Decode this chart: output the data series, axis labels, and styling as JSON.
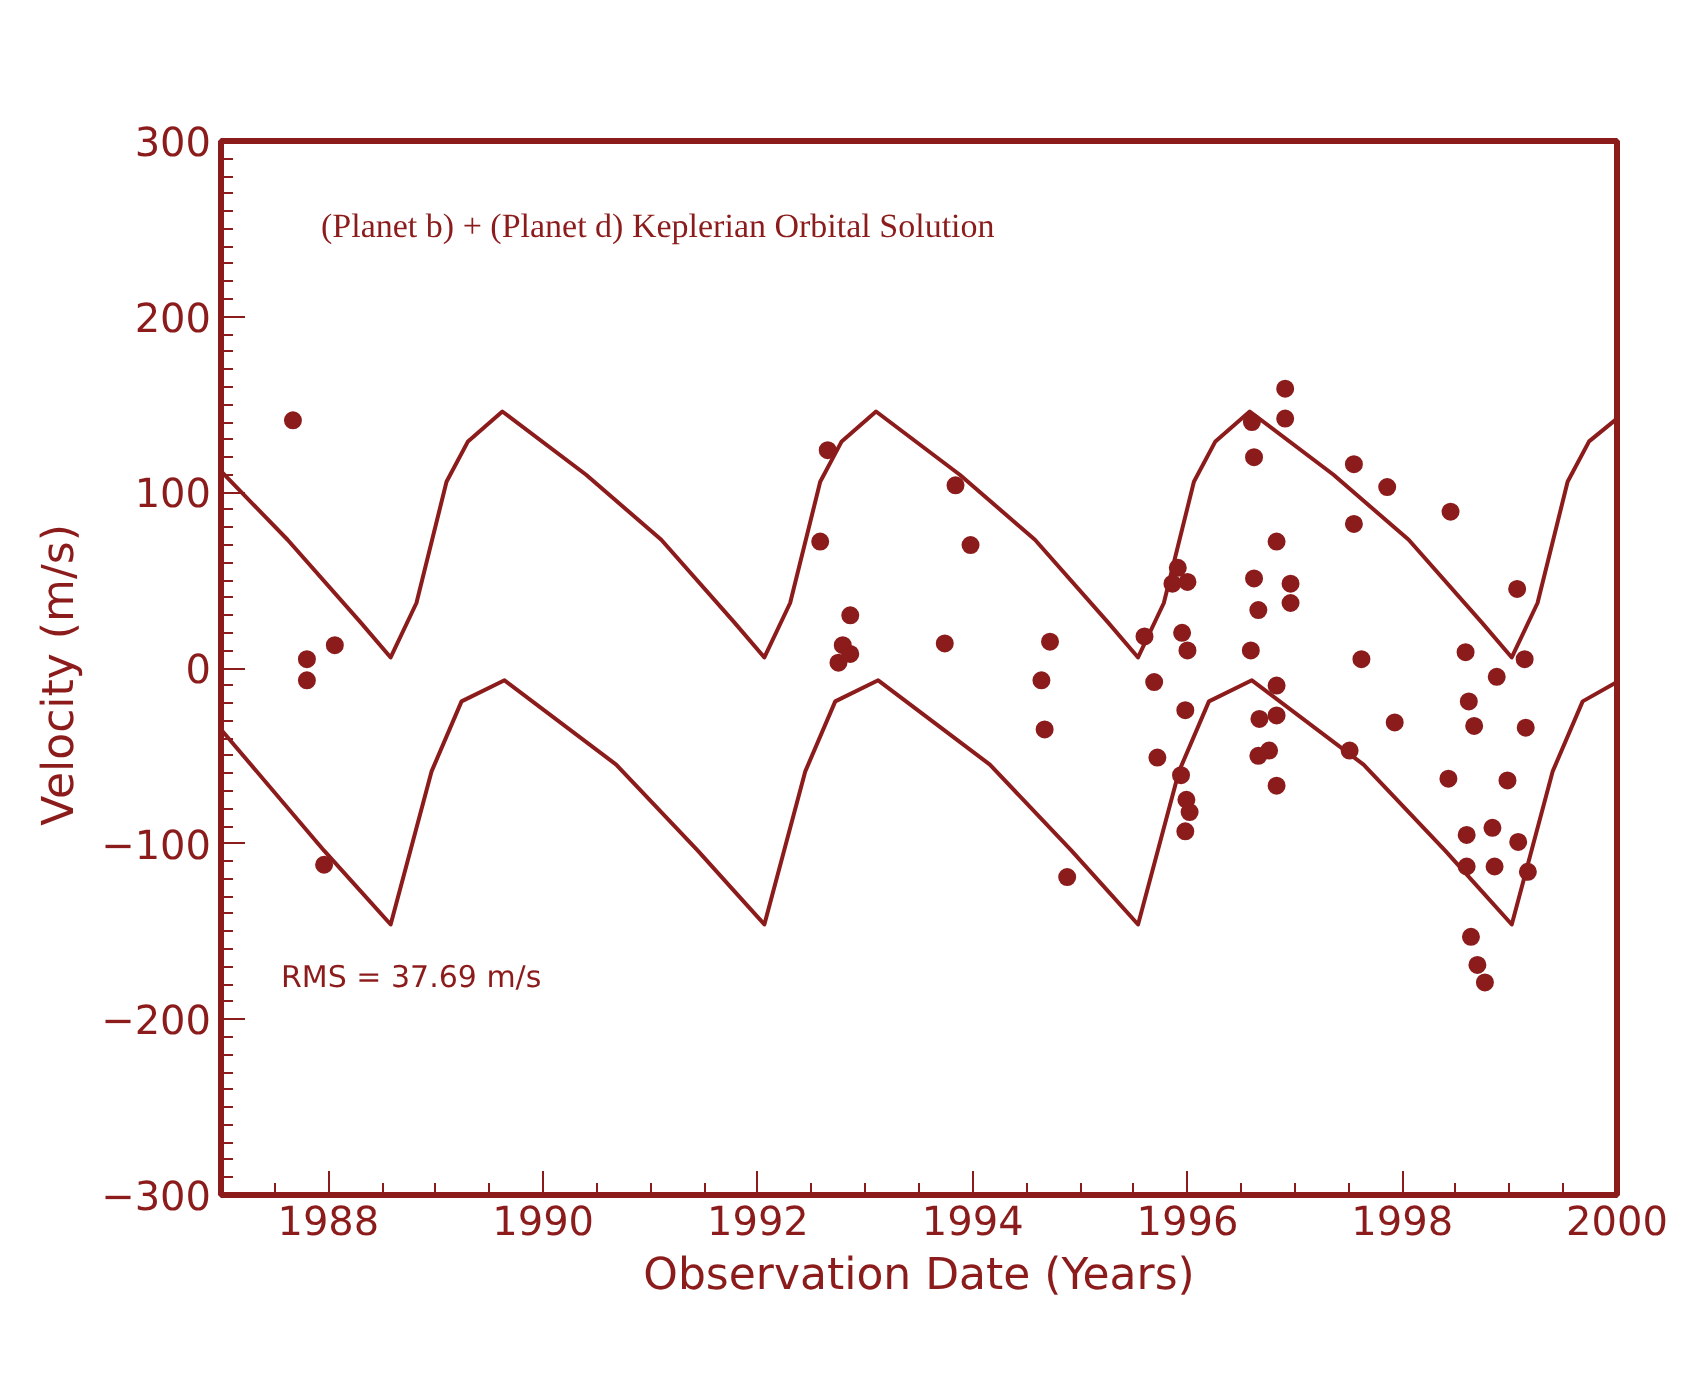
{
  "chart_data": {
    "type": "scatter",
    "xlabel": "Observation Date (Years)",
    "ylabel": "Velocity  (m/s)",
    "annotations": [
      "(Planet b) + (Planet d) Keplerian Orbital Solution",
      "RMS = 37.69 m/s"
    ],
    "xlim": [
      1987,
      2000
    ],
    "ylim": [
      -300,
      300
    ],
    "xticks": [
      1988,
      1990,
      1992,
      1994,
      1996,
      1998,
      2000
    ],
    "yticks": [
      -300,
      -200,
      -100,
      0,
      100,
      200,
      300
    ],
    "grid": false,
    "series": [
      {
        "type": "line",
        "color": "#8c1c1c",
        "line_style": "solid",
        "x": [
          1987,
          1987.62,
          1988.3,
          1988.58,
          1988.82,
          1989.1,
          1989.3,
          1989.62,
          1990.4,
          1991.1,
          1991.78,
          1992.06,
          1992.3,
          1992.58,
          1992.78,
          1993.1,
          1993.88,
          1994.58,
          1995.26,
          1995.54,
          1995.78,
          1996.06,
          1996.26,
          1996.58,
          1997.36,
          1998.06,
          1998.74,
          1999.02,
          1999.26,
          1999.54,
          1999.74,
          2000
        ],
        "values": [
          112,
          73,
          26,
          6,
          37,
          106,
          129,
          146,
          110,
          73,
          26,
          6,
          37,
          106,
          129,
          146,
          110,
          73,
          26,
          6,
          37,
          106,
          129,
          146,
          110,
          73,
          26,
          6,
          37,
          106,
          129,
          142
        ]
      },
      {
        "type": "line",
        "color": "#8c1c1c",
        "line_style": "solid",
        "x": [
          1987,
          1987.96,
          1988.3,
          1988.58,
          1988.96,
          1989.24,
          1989.64,
          1990.68,
          1991.44,
          1991.78,
          1992.06,
          1992.44,
          1992.72,
          1993.12,
          1994.16,
          1994.92,
          1995.26,
          1995.54,
          1995.92,
          1996.2,
          1996.6,
          1997.64,
          1998.4,
          1998.74,
          1999.02,
          1999.4,
          1999.68,
          2000
        ],
        "values": [
          -35,
          -104,
          -127,
          -146,
          -59,
          -19,
          -7,
          -55,
          -104,
          -127,
          -146,
          -59,
          -19,
          -7,
          -55,
          -104,
          -127,
          -146,
          -59,
          -19,
          -7,
          -55,
          -104,
          -127,
          -146,
          -59,
          -19,
          -8
        ]
      },
      {
        "color": "#8c1c1c",
        "marker": "circle",
        "x": [
          1987.67,
          1987.8,
          1988.06,
          1987.8,
          1987.96,
          1992.65,
          1992.58,
          1992.86,
          1992.79,
          1992.86,
          1992.75,
          1993.84,
          1993.98,
          1993.74,
          1994.72,
          1994.64,
          1994.67,
          1994.88,
          1995.6,
          1995.69,
          1995.91,
          1995.86,
          1996.0,
          1995.95,
          1996.0,
          1995.98,
          1995.72,
          1995.94,
          1995.99,
          1996.02,
          1995.98,
          1996.6,
          1996.62,
          1996.91,
          1996.91,
          1996.83,
          1996.62,
          1996.66,
          1996.96,
          1996.96,
          1996.59,
          1996.83,
          1996.67,
          1996.83,
          1996.66,
          1996.76,
          1996.83,
          1997.55,
          1997.86,
          1997.55,
          1997.62,
          1997.51,
          1997.93,
          1998.45,
          1999.07,
          1998.59,
          1999.14,
          1998.88,
          1998.62,
          1998.67,
          1999.15,
          1998.43,
          1998.98,
          1998.6,
          1998.84,
          1999.08,
          1998.6,
          1998.86,
          1999.17,
          1998.64,
          1998.7,
          1998.77
        ],
        "values": [
          141,
          5,
          13,
          -7,
          -112,
          124,
          72,
          30,
          13,
          8,
          3,
          104,
          70,
          14,
          15,
          -7,
          -35,
          -119,
          18,
          -8,
          57,
          48,
          49,
          20,
          10,
          -24,
          -51,
          -61,
          -75,
          -82,
          -93,
          140,
          120,
          159,
          142,
          72,
          51,
          33,
          48,
          37,
          10,
          -10,
          -29,
          -27,
          -50,
          -47,
          -67,
          116,
          103,
          82,
          5,
          -47,
          -31,
          89,
          45,
          9,
          5,
          -5,
          -19,
          -33,
          -34,
          -63,
          -64,
          -95,
          -91,
          -99,
          -113,
          -113,
          -116,
          -153,
          -169,
          -179
        ]
      }
    ]
  }
}
